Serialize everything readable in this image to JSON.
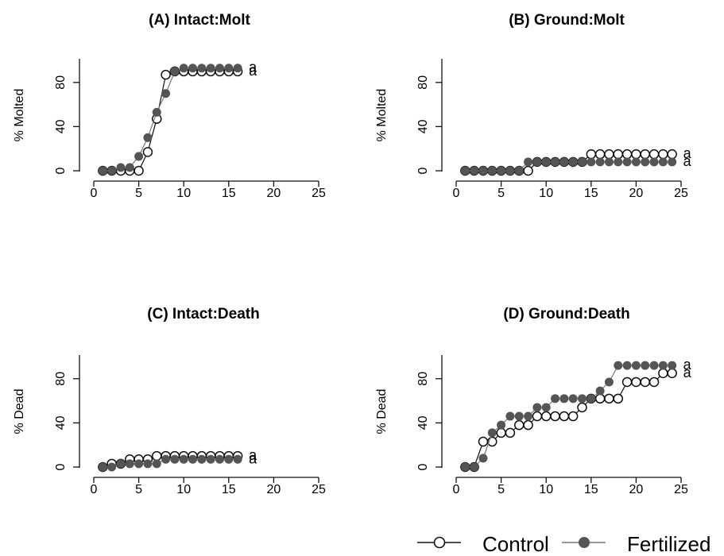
{
  "legend": {
    "control_label": "Control",
    "fertilized_label": "Fertilized"
  },
  "colors": {
    "control_fill": "#ffffff",
    "control_stroke": "#111111",
    "fertilized_fill": "#555555",
    "fertilized_line": "#777777",
    "axis": "#111111"
  },
  "chart_data": [
    {
      "type": "line",
      "title": "(A) Intact:Molt",
      "xlabel": "",
      "ylabel": "% Molted",
      "xlim": [
        0,
        25
      ],
      "ylim": [
        0,
        100
      ],
      "xticks": [
        "0",
        "5",
        "10",
        "15",
        "20",
        "25"
      ],
      "yticks": [
        "0",
        "40",
        "80"
      ],
      "grid": false,
      "series": [
        {
          "name": "Control",
          "x": [
            1,
            2,
            3,
            4,
            5,
            6,
            7,
            8,
            9,
            10,
            11,
            12,
            13,
            14,
            15,
            16
          ],
          "y": [
            0,
            0,
            0,
            0,
            0,
            17,
            47,
            87,
            90,
            90,
            90,
            90,
            90,
            90,
            90,
            90
          ],
          "sig": "a"
        },
        {
          "name": "Fertilized",
          "x": [
            1,
            2,
            3,
            4,
            5,
            6,
            7,
            8,
            9,
            10,
            11,
            12,
            13,
            14,
            15,
            16
          ],
          "y": [
            0,
            0,
            3,
            3,
            13,
            30,
            53,
            70,
            90,
            93,
            93,
            93,
            93,
            93,
            93,
            93
          ],
          "sig": "a"
        }
      ]
    },
    {
      "type": "line",
      "title": "(B) Ground:Molt",
      "xlabel": "",
      "ylabel": "% Molted",
      "xlim": [
        0,
        25
      ],
      "ylim": [
        0,
        100
      ],
      "xticks": [
        "0",
        "5",
        "10",
        "15",
        "20",
        "25"
      ],
      "yticks": [
        "0",
        "40",
        "80"
      ],
      "grid": false,
      "series": [
        {
          "name": "Control",
          "x": [
            1,
            2,
            3,
            4,
            5,
            6,
            7,
            8,
            9,
            10,
            11,
            12,
            13,
            14,
            15,
            16,
            17,
            18,
            19,
            20,
            21,
            22,
            23,
            24
          ],
          "y": [
            0,
            0,
            0,
            0,
            0,
            0,
            0,
            0,
            8,
            8,
            8,
            8,
            8,
            8,
            15,
            15,
            15,
            15,
            15,
            15,
            15,
            15,
            15,
            15
          ],
          "sig": "a"
        },
        {
          "name": "Fertilized",
          "x": [
            1,
            2,
            3,
            4,
            5,
            6,
            7,
            8,
            9,
            10,
            11,
            12,
            13,
            14,
            15,
            16,
            17,
            18,
            19,
            20,
            21,
            22,
            23,
            24
          ],
          "y": [
            0,
            0,
            0,
            0,
            0,
            0,
            0,
            8,
            8,
            8,
            8,
            8,
            8,
            8,
            8,
            8,
            8,
            8,
            8,
            8,
            8,
            8,
            8,
            8
          ],
          "sig": "a"
        }
      ]
    },
    {
      "type": "line",
      "title": "(C) Intact:Death",
      "xlabel": "",
      "ylabel": "% Dead",
      "xlim": [
        0,
        25
      ],
      "ylim": [
        0,
        100
      ],
      "xticks": [
        "0",
        "5",
        "10",
        "15",
        "20",
        "25"
      ],
      "yticks": [
        "0",
        "40",
        "80"
      ],
      "grid": false,
      "series": [
        {
          "name": "Control",
          "x": [
            1,
            2,
            3,
            4,
            5,
            6,
            7,
            8,
            9,
            10,
            11,
            12,
            13,
            14,
            15,
            16
          ],
          "y": [
            0,
            3,
            3,
            7,
            7,
            7,
            10,
            10,
            10,
            10,
            10,
            10,
            10,
            10,
            10,
            10
          ],
          "sig": "a"
        },
        {
          "name": "Fertilized",
          "x": [
            1,
            2,
            3,
            4,
            5,
            6,
            7,
            8,
            9,
            10,
            11,
            12,
            13,
            14,
            15,
            16
          ],
          "y": [
            0,
            0,
            3,
            3,
            3,
            3,
            3,
            7,
            7,
            7,
            7,
            7,
            7,
            7,
            7,
            7
          ],
          "sig": "a"
        }
      ]
    },
    {
      "type": "line",
      "title": "(D) Ground:Death",
      "xlabel": "",
      "ylabel": "% Dead",
      "xlim": [
        0,
        25
      ],
      "ylim": [
        0,
        100
      ],
      "xticks": [
        "0",
        "5",
        "10",
        "15",
        "20",
        "25"
      ],
      "yticks": [
        "0",
        "40",
        "80"
      ],
      "grid": false,
      "series": [
        {
          "name": "Control",
          "x": [
            1,
            2,
            3,
            4,
            5,
            6,
            7,
            8,
            9,
            10,
            11,
            12,
            13,
            14,
            15,
            16,
            17,
            18,
            19,
            20,
            21,
            22,
            23,
            24
          ],
          "y": [
            0,
            0,
            23,
            23,
            31,
            31,
            38,
            38,
            46,
            46,
            46,
            46,
            46,
            54,
            62,
            62,
            62,
            62,
            77,
            77,
            77,
            77,
            85,
            85
          ],
          "sig": "a"
        },
        {
          "name": "Fertilized",
          "x": [
            1,
            2,
            3,
            4,
            5,
            6,
            7,
            8,
            9,
            10,
            11,
            12,
            13,
            14,
            15,
            16,
            17,
            18,
            19,
            20,
            21,
            22,
            23,
            24
          ],
          "y": [
            0,
            0,
            8,
            31,
            38,
            46,
            46,
            46,
            54,
            54,
            62,
            62,
            62,
            62,
            62,
            69,
            77,
            92,
            92,
            92,
            92,
            92,
            92,
            92
          ],
          "sig": "a"
        }
      ]
    }
  ]
}
